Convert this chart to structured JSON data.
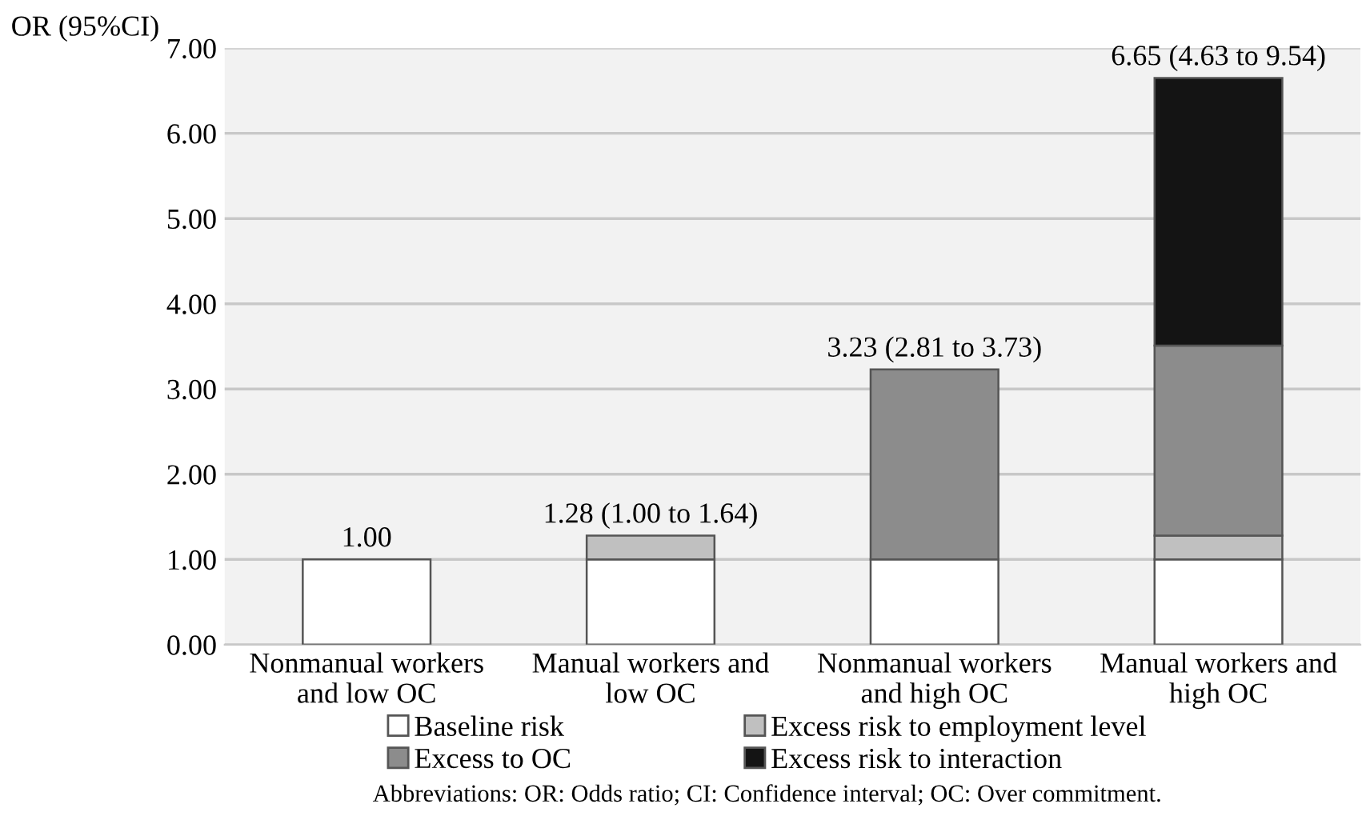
{
  "chart_data": {
    "type": "bar",
    "stacked": true,
    "ylabel": "OR (95%CI)",
    "categories": [
      "Nonmanual workers\nand low OC",
      "Manual workers and\nlow OC",
      "Nonmanual workers\nand high OC",
      "Manual workers and\nhigh OC"
    ],
    "series": [
      {
        "name": "Baseline risk",
        "color": "#ffffff",
        "values": [
          1.0,
          1.0,
          1.0,
          1.0
        ]
      },
      {
        "name": "Excess risk to employment level",
        "color": "#c0c0c0",
        "values": [
          null,
          0.28,
          null,
          0.28
        ]
      },
      {
        "name": "Excess to OC",
        "color": "#8c8c8c",
        "values": [
          null,
          null,
          2.23,
          2.23
        ]
      },
      {
        "name": "Excess risk to interaction",
        "color": "#141414",
        "values": [
          null,
          null,
          null,
          3.14
        ]
      }
    ],
    "totals": [
      "1.00",
      "1.28 (1.00 to 1.64)",
      "3.23 (2.81 to 3.73)",
      "6.65 (4.63 to 9.54)"
    ],
    "ylim": [
      0,
      7
    ],
    "yticks": [
      {
        "value": 0,
        "label": "0.00"
      },
      {
        "value": 1,
        "label": "1.00"
      },
      {
        "value": 2,
        "label": "2.00"
      },
      {
        "value": 3,
        "label": "3.00"
      },
      {
        "value": 4,
        "label": "4.00"
      },
      {
        "value": 5,
        "label": "5.00"
      },
      {
        "value": 6,
        "label": "6.00"
      },
      {
        "value": 7,
        "label": "7.00"
      }
    ],
    "grid": "y",
    "legend": "bottom",
    "annotations": [
      "Abbreviations: OR: Odds ratio; CI: Confidence interval; OC: Over commitment."
    ]
  }
}
